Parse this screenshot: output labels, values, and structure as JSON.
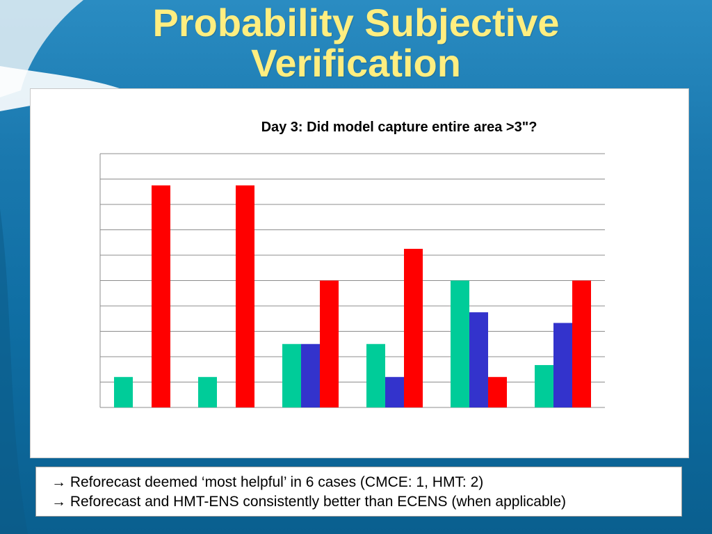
{
  "slide": {
    "title_line1": "Probability Subjective",
    "title_line2": "Verification"
  },
  "notes": [
    "→ Reforecast deemed ‘most helpful’ in 6 cases (CMCE: 1, HMT: 2)",
    "→ Reforecast and HMT-ENS consistently better than ECENS (when applicable)"
  ],
  "colors": {
    "series": [
      "#00cc99",
      "#3333cc",
      "#ff0000"
    ],
    "title": "#ffee80"
  },
  "chart_data": {
    "type": "bar",
    "title": "Day 3: Did model capture entire area >3\"?",
    "xlabel": "",
    "ylabel": "",
    "grid": true,
    "legend": "none",
    "ylim": [
      0,
      10
    ],
    "gridlines": 10,
    "categories": [
      "",
      "",
      "",
      "",
      "",
      ""
    ],
    "series": [
      {
        "values": [
          1.2,
          1.2,
          2.5,
          2.5,
          5.0,
          1.67
        ]
      },
      {
        "values": [
          0,
          0,
          2.5,
          1.2,
          3.75,
          3.33
        ]
      },
      {
        "values": [
          8.75,
          8.75,
          5.0,
          6.25,
          1.2,
          5.0
        ]
      }
    ]
  }
}
